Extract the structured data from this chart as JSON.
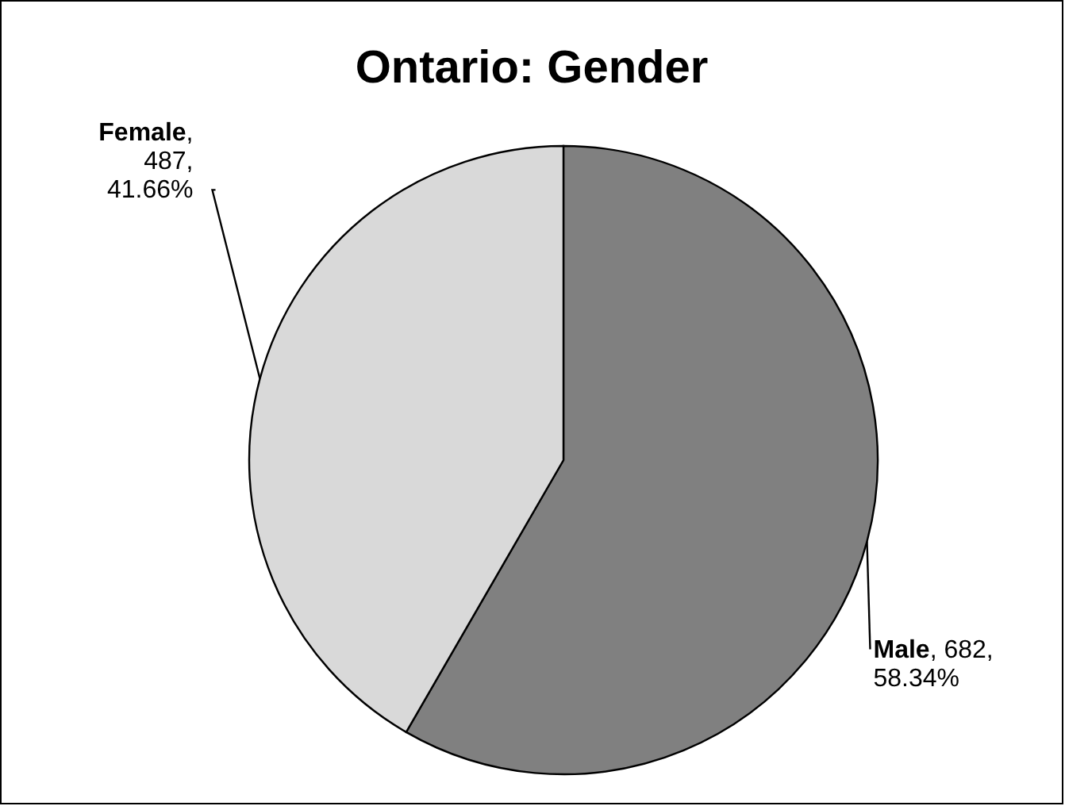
{
  "chart_data": {
    "type": "pie",
    "title": "Ontario: Gender",
    "categories": [
      "Male",
      "Female"
    ],
    "values": [
      682,
      487
    ],
    "colors": [
      "#808080",
      "#d9d9d9"
    ],
    "value_labels": [
      ", 682, 58.34%",
      ", 487, 41.66%"
    ],
    "legend": false
  }
}
